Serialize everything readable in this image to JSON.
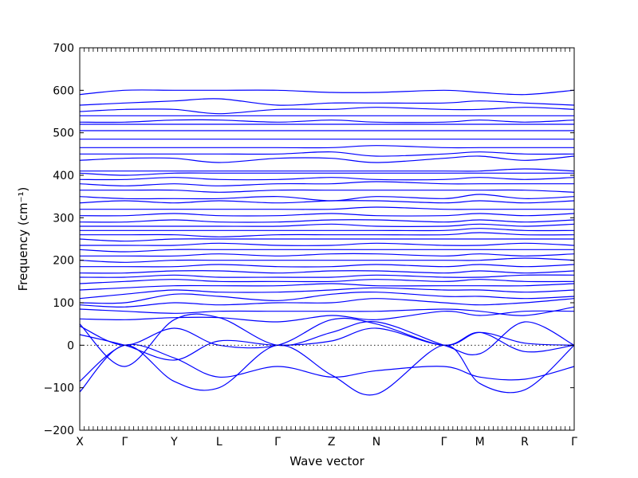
{
  "chart_data": {
    "type": "line",
    "xlabel": "Wave vector",
    "ylabel": "Frequency (cm⁻¹)",
    "ylim": [
      -200,
      700
    ],
    "yticks": [
      -200,
      -100,
      0,
      100,
      200,
      300,
      400,
      500,
      600,
      700
    ],
    "xlim": [
      0,
      11
    ],
    "high_symmetry_points": [
      {
        "label": "X",
        "x": 0
      },
      {
        "label": "Γ",
        "x": 1
      },
      {
        "label": "Y",
        "x": 2.1
      },
      {
        "label": "L",
        "x": 3.1
      },
      {
        "label": "Γ",
        "x": 4.4
      },
      {
        "label": "Z",
        "x": 5.6
      },
      {
        "label": "N",
        "x": 6.6
      },
      {
        "label": "Γ",
        "x": 8.1
      },
      {
        "label": "M",
        "x": 8.9
      },
      {
        "label": "R",
        "x": 9.9
      },
      {
        "label": "Γ",
        "x": 11
      }
    ],
    "zero_line": true,
    "line_color": "#0000ff",
    "x": [
      0,
      1,
      2.1,
      3.1,
      4.4,
      5.6,
      6.6,
      8.1,
      8.9,
      9.9,
      11
    ],
    "series": [
      {
        "values": [
          -110,
          0,
          -85,
          -100,
          0,
          -70,
          -115,
          0,
          -90,
          -105,
          0
        ]
      },
      {
        "values": [
          -85,
          0,
          -30,
          -75,
          -50,
          -75,
          -60,
          -50,
          -75,
          -80,
          -50
        ]
      },
      {
        "values": [
          25,
          0,
          -35,
          10,
          0,
          10,
          40,
          0,
          30,
          -15,
          0
        ]
      },
      {
        "values": [
          45,
          0,
          40,
          0,
          0,
          60,
          50,
          0,
          30,
          5,
          0
        ]
      },
      {
        "values": [
          50,
          -50,
          60,
          65,
          0,
          30,
          55,
          0,
          -20,
          55,
          0
        ]
      },
      {
        "values": [
          62,
          60,
          65,
          65,
          55,
          70,
          60,
          80,
          70,
          80,
          80
        ]
      },
      {
        "values": [
          85,
          80,
          75,
          80,
          80,
          80,
          80,
          85,
          80,
          70,
          90
        ]
      },
      {
        "values": [
          95,
          90,
          100,
          95,
          100,
          100,
          110,
          100,
          95,
          100,
          110
        ]
      },
      {
        "values": [
          100,
          100,
          120,
          115,
          105,
          120,
          125,
          115,
          115,
          110,
          115
        ]
      },
      {
        "values": [
          110,
          120,
          130,
          125,
          125,
          130,
          135,
          130,
          130,
          125,
          130
        ]
      },
      {
        "values": [
          130,
          135,
          140,
          140,
          140,
          145,
          140,
          140,
          140,
          140,
          145
        ]
      },
      {
        "values": [
          145,
          150,
          155,
          150,
          150,
          150,
          155,
          150,
          155,
          150,
          150
        ]
      },
      {
        "values": [
          160,
          160,
          165,
          160,
          160,
          160,
          165,
          160,
          160,
          165,
          165
        ]
      },
      {
        "values": [
          170,
          170,
          175,
          175,
          170,
          175,
          175,
          170,
          175,
          170,
          175
        ]
      },
      {
        "values": [
          185,
          185,
          185,
          190,
          185,
          185,
          190,
          185,
          190,
          185,
          190
        ]
      },
      {
        "values": [
          200,
          195,
          200,
          200,
          200,
          200,
          200,
          200,
          200,
          205,
          200
        ]
      },
      {
        "values": [
          210,
          210,
          210,
          215,
          210,
          215,
          215,
          210,
          215,
          210,
          215
        ]
      },
      {
        "values": [
          225,
          220,
          225,
          225,
          225,
          225,
          225,
          225,
          225,
          225,
          225
        ]
      },
      {
        "values": [
          235,
          235,
          235,
          240,
          235,
          235,
          240,
          235,
          235,
          240,
          235
        ]
      },
      {
        "values": [
          250,
          245,
          250,
          250,
          250,
          250,
          250,
          250,
          250,
          250,
          250
        ]
      },
      {
        "values": [
          260,
          260,
          260,
          255,
          260,
          260,
          260,
          260,
          265,
          260,
          260
        ]
      },
      {
        "values": [
          270,
          270,
          270,
          270,
          270,
          270,
          270,
          270,
          275,
          270,
          270
        ]
      },
      {
        "values": [
          280,
          280,
          280,
          280,
          280,
          285,
          280,
          280,
          285,
          280,
          285
        ]
      },
      {
        "values": [
          290,
          290,
          295,
          290,
          290,
          295,
          295,
          290,
          295,
          290,
          295
        ]
      },
      {
        "values": [
          305,
          305,
          310,
          305,
          305,
          310,
          305,
          305,
          310,
          305,
          310
        ]
      },
      {
        "values": [
          320,
          320,
          320,
          320,
          320,
          320,
          325,
          320,
          320,
          320,
          320
        ]
      },
      {
        "values": [
          335,
          340,
          335,
          340,
          335,
          340,
          340,
          335,
          340,
          335,
          340
        ]
      },
      {
        "values": [
          350,
          345,
          345,
          345,
          350,
          340,
          350,
          345,
          355,
          345,
          350
        ]
      },
      {
        "values": [
          365,
          365,
          365,
          360,
          365,
          365,
          365,
          365,
          365,
          365,
          360
        ]
      },
      {
        "values": [
          380,
          375,
          380,
          375,
          380,
          380,
          385,
          380,
          380,
          380,
          380
        ]
      },
      {
        "values": [
          390,
          390,
          395,
          390,
          390,
          395,
          390,
          390,
          395,
          390,
          395
        ]
      },
      {
        "values": [
          405,
          400,
          405,
          405,
          405,
          405,
          405,
          405,
          405,
          405,
          405
        ]
      },
      {
        "values": [
          410,
          410,
          410,
          410,
          410,
          410,
          410,
          410,
          410,
          415,
          410
        ]
      },
      {
        "values": [
          435,
          440,
          440,
          430,
          440,
          440,
          430,
          440,
          445,
          435,
          445
        ]
      },
      {
        "values": [
          450,
          450,
          450,
          450,
          450,
          455,
          445,
          450,
          455,
          450,
          450
        ]
      },
      {
        "values": [
          465,
          465,
          465,
          465,
          465,
          465,
          470,
          465,
          465,
          465,
          465
        ]
      },
      {
        "values": [
          485,
          485,
          485,
          485,
          485,
          485,
          485,
          485,
          485,
          485,
          485
        ]
      },
      {
        "values": [
          505,
          505,
          505,
          505,
          505,
          505,
          505,
          505,
          505,
          505,
          505
        ]
      },
      {
        "values": [
          520,
          520,
          520,
          520,
          520,
          520,
          520,
          520,
          520,
          520,
          520
        ]
      },
      {
        "values": [
          525,
          525,
          530,
          530,
          525,
          530,
          525,
          525,
          530,
          525,
          530
        ]
      },
      {
        "values": [
          540,
          540,
          540,
          540,
          540,
          540,
          540,
          540,
          540,
          540,
          540
        ]
      },
      {
        "values": [
          550,
          555,
          555,
          545,
          555,
          555,
          560,
          555,
          555,
          560,
          555
        ]
      },
      {
        "values": [
          565,
          570,
          575,
          580,
          565,
          570,
          570,
          570,
          575,
          570,
          565
        ]
      },
      {
        "values": [
          590,
          600,
          600,
          600,
          600,
          595,
          595,
          600,
          595,
          590,
          600
        ]
      }
    ]
  }
}
